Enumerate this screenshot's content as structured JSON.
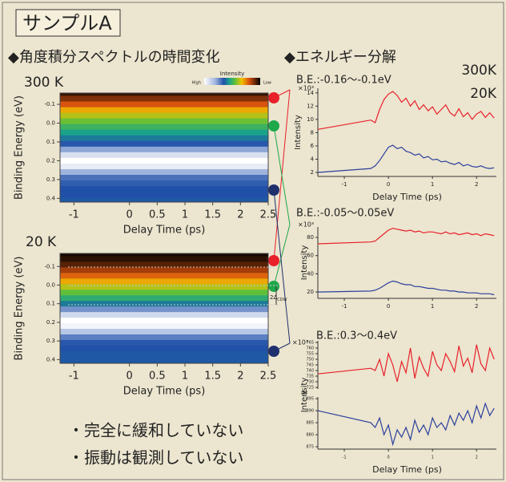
{
  "header": {
    "title": "サンプルA",
    "left_heading": "◆角度積分スペクトルの時間変化",
    "right_heading": "◆エネルギー分解"
  },
  "colorbar": {
    "title": "Intensity",
    "high": "High",
    "low": "Low"
  },
  "notes": [
    "・完全に緩和していない",
    "・振動は観測していない"
  ],
  "chart_data": [
    {
      "type": "heatmap",
      "label": "300 K",
      "label_color": "#e8202a",
      "xlabel": "Delay Time (ps)",
      "ylabel": "Binding Energy (eV)",
      "xlim": [
        -1.25,
        2.5
      ],
      "xticks": [
        -1,
        0,
        0.5,
        1,
        1.5,
        2,
        2.5
      ],
      "ylim": [
        -0.16,
        0.42
      ],
      "yticks": [
        -0.1,
        {
          "value": 0,
          "label": "0.0"
        },
        0.1,
        0.2,
        0.3,
        0.4
      ],
      "energies": [
        -0.16,
        -0.13,
        -0.1,
        -0.07,
        -0.04,
        -0.01,
        0.02,
        0.05,
        0.08,
        0.11,
        0.14,
        0.17,
        0.2,
        0.23,
        0.26,
        0.29,
        0.32,
        0.35,
        0.38,
        0.41
      ],
      "intensity": [
        0.05,
        0.12,
        0.2,
        0.3,
        0.38,
        0.44,
        0.5,
        0.55,
        0.6,
        0.66,
        0.78,
        0.92,
        1.0,
        0.95,
        0.8,
        0.7,
        0.67,
        0.65,
        0.65,
        0.64
      ]
    },
    {
      "type": "heatmap",
      "label": "20 K",
      "label_color": "#2b3f9e",
      "xlabel": "Delay Time (ps)",
      "ylabel": "Binding Energy (eV)",
      "annotation": "2Δ",
      "annotation_sub": "CDW",
      "xlim": [
        -1.25,
        2.5
      ],
      "xticks": [
        -1,
        0,
        0.5,
        1,
        1.5,
        2,
        2.5
      ],
      "ylim": [
        -0.17,
        0.42
      ],
      "yticks": [
        -0.1,
        {
          "value": 0,
          "label": "0.0"
        },
        0.1,
        0.2,
        0.3,
        0.4
      ],
      "energies": [
        -0.17,
        -0.14,
        -0.11,
        -0.08,
        -0.05,
        -0.02,
        0.01,
        0.04,
        0.07,
        0.1,
        0.13,
        0.16,
        0.19,
        0.22,
        0.25,
        0.28,
        0.31,
        0.34,
        0.37,
        0.4
      ],
      "intensity": [
        0.02,
        0.04,
        0.08,
        0.15,
        0.22,
        0.3,
        0.38,
        0.45,
        0.52,
        0.6,
        0.75,
        0.9,
        1.0,
        0.97,
        0.85,
        0.72,
        0.66,
        0.65,
        0.64,
        0.64
      ]
    },
    {
      "type": "line",
      "title": "B.E.:-0.16〜-0.1eV",
      "title_color": "#e8202a",
      "y_unit": "×10³",
      "xlabel": "Delay Time (ps)",
      "ylabel": "Intensity",
      "x": [
        -1.6,
        -0.4,
        -0.3,
        -0.2,
        -0.1,
        0,
        0.1,
        0.2,
        0.3,
        0.4,
        0.5,
        0.6,
        0.7,
        0.8,
        0.9,
        1.0,
        1.1,
        1.2,
        1.3,
        1.4,
        1.5,
        1.6,
        1.7,
        1.8,
        1.9,
        2.0,
        2.1,
        2.2,
        2.3,
        2.4
      ],
      "xlim": [
        -1.6,
        2.45
      ],
      "xticks": [
        -1,
        0,
        1,
        2
      ],
      "ylim": [
        1.4,
        14.7
      ],
      "yticks": [
        2,
        4,
        6,
        8,
        10,
        12,
        14
      ],
      "series": [
        {
          "name": "300K",
          "color": "#e8202a",
          "values": [
            8.5,
            9.9,
            9.5,
            11.5,
            13,
            13.8,
            14.2,
            13.6,
            12.6,
            13.2,
            12,
            12.8,
            11.5,
            12.2,
            11.3,
            11.9,
            10.8,
            11.5,
            12.2,
            11,
            10.5,
            11.6,
            10.4,
            11,
            10,
            10.8,
            11.2,
            10.3,
            11,
            10.2
          ]
        },
        {
          "name": "20K",
          "color": "#2b3f9e",
          "values": [
            2.0,
            2.6,
            3.0,
            3.8,
            4.8,
            5.8,
            6.1,
            5.6,
            5.8,
            5.2,
            5.0,
            4.6,
            4.8,
            4.2,
            4.4,
            3.9,
            4.0,
            3.6,
            3.7,
            3.4,
            3.2,
            3.5,
            3.0,
            3.2,
            2.9,
            2.8,
            3.0,
            2.7,
            2.6,
            2.7
          ]
        }
      ]
    },
    {
      "type": "line",
      "title": "B.E.:-0.05〜0.05eV",
      "title_color": "#1ea84a",
      "y_unit": "×10³",
      "ylabel": "Intensity",
      "x": [
        -1.6,
        -0.4,
        -0.3,
        -0.2,
        -0.1,
        0,
        0.1,
        0.2,
        0.3,
        0.4,
        0.5,
        0.6,
        0.7,
        0.8,
        0.9,
        1.0,
        1.1,
        1.2,
        1.3,
        1.4,
        1.5,
        1.6,
        1.7,
        1.8,
        1.9,
        2.0,
        2.1,
        2.2,
        2.3,
        2.4
      ],
      "xlim": [
        -1.6,
        2.45
      ],
      "xticks": [
        -1,
        0,
        1,
        2
      ],
      "ylim": [
        13,
        91.5
      ],
      "yticks": [
        20,
        40,
        60,
        80
      ],
      "series": [
        {
          "color": "#e8202a",
          "values": [
            73,
            75,
            76,
            80,
            84,
            88,
            90,
            89,
            88,
            87,
            88,
            86,
            87,
            85,
            86,
            86,
            85,
            84,
            86,
            84,
            85,
            83,
            84,
            85,
            83,
            84,
            82,
            84,
            83,
            82
          ]
        },
        {
          "color": "#2b3f9e",
          "values": [
            20,
            21,
            22,
            24,
            27,
            30,
            32,
            31,
            29,
            28,
            28,
            26,
            26,
            25,
            24,
            24,
            23,
            22,
            22,
            21,
            21,
            20,
            20,
            19,
            19,
            19,
            18,
            18,
            18,
            17
          ]
        }
      ]
    },
    {
      "type": "line",
      "title": "B.E.:0.3〜0.4eV",
      "title_color": "#2b3f9e",
      "y_unit": "×10³",
      "xlabel": "Delay Time (ps)",
      "ylabel": "Intensity",
      "x": [
        -1.6,
        -0.4,
        -0.3,
        -0.2,
        -0.1,
        0,
        0.1,
        0.2,
        0.3,
        0.4,
        0.5,
        0.6,
        0.7,
        0.8,
        0.9,
        1.0,
        1.1,
        1.2,
        1.3,
        1.4,
        1.5,
        1.6,
        1.7,
        1.8,
        1.9,
        2.0,
        2.1,
        2.2,
        2.3,
        2.4
      ],
      "xlim": [
        -1.6,
        2.45
      ],
      "xticks": [
        -1,
        0,
        1,
        2
      ],
      "ylim": [
        723.6,
        766.4
      ],
      "yticks": [
        725,
        730,
        735,
        740,
        745,
        750,
        755,
        760,
        765
      ],
      "y2lim": [
        874,
        895.7
      ],
      "y2ticks": [
        875,
        880,
        885,
        890,
        895
      ],
      "series": [
        {
          "color": "#e8202a",
          "values": [
            737,
            742,
            740,
            750,
            735,
            755,
            745,
            730,
            748,
            738,
            760,
            733,
            752,
            742,
            735,
            757,
            745,
            740,
            755,
            748,
            739,
            762,
            744,
            751,
            738,
            763,
            746,
            740,
            760,
            750
          ]
        },
        {
          "color": "#2b3f9e",
          "axis": "y2",
          "values": [
            890,
            885,
            883,
            887,
            880,
            884,
            876,
            882,
            879,
            883,
            878,
            886,
            881,
            884,
            880,
            887,
            883,
            885,
            882,
            888,
            884,
            889,
            886,
            890,
            885,
            892,
            887,
            893,
            888,
            891
          ]
        }
      ]
    }
  ]
}
